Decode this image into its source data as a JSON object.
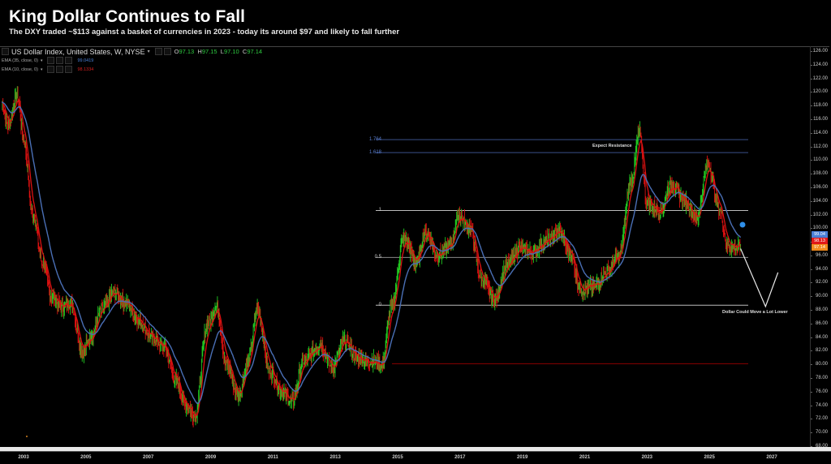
{
  "header": {
    "title": "King Dollar Continues to Fall",
    "subtitle": "The DXY traded ~$113 against a basket of currencies in 2023 - today its around $97 and likely to fall further"
  },
  "legend": {
    "symbol": "US Dollar Index, United States, W, NYSE",
    "open_label": "O",
    "open": "97.13",
    "high_label": "H",
    "high": "97.15",
    "low_label": "L",
    "low": "97.10",
    "close_label": "C",
    "close": "97.14",
    "ema1_label": "EMA (35, close, 0)",
    "ema1_value": "99.0419",
    "ema2_label": "EMA (10, close, 0)",
    "ema2_value": "98.1334"
  },
  "price_tags": {
    "ema35": "99.04",
    "ema10": "98.13",
    "last": "97.14"
  },
  "annotations": {
    "resistance": "Expect Resistance",
    "lower": "Dollar Could Move a Lot Lower"
  },
  "fib_levels": [
    {
      "label": "1.764",
      "price": 113.0,
      "color": "#3a4f8a"
    },
    {
      "label": "1.618",
      "price": 111.1,
      "color": "#3a4f8a"
    },
    {
      "label": "1",
      "price": 102.6,
      "color": "#bbbbbb"
    },
    {
      "label": "0.5",
      "price": 95.7,
      "color": "#888888"
    },
    {
      "label": "0",
      "price": 88.7,
      "color": "#bbbbbb"
    }
  ],
  "colors": {
    "background": "#000000",
    "up_candle": "#22cc22",
    "down_candle": "#dd1111",
    "ema35": "#4a6fb5",
    "ema10": "#dd1111",
    "support_line": "#8b0000",
    "marker": "#2f8fe8"
  },
  "chart_data": {
    "type": "line",
    "title": "King Dollar Continues to Fall",
    "subtitle": "The DXY traded ~$113 against a basket of currencies in 2023 - today its around $97 and likely to fall further",
    "xlabel": "",
    "ylabel": "",
    "ylim": [
      68,
      126
    ],
    "xlim": [
      2002.3,
      2028.0
    ],
    "grid": false,
    "legend_position": "top-left",
    "x_ticks": [
      "2003",
      "2005",
      "2007",
      "2009",
      "2011",
      "2013",
      "2015",
      "2017",
      "2019",
      "2021",
      "2023",
      "2025",
      "2027"
    ],
    "y_ticks": [
      "126.00",
      "124.00",
      "122.00",
      "120.00",
      "118.00",
      "116.00",
      "114.00",
      "112.00",
      "110.00",
      "108.00",
      "106.00",
      "104.00",
      "102.00",
      "100.00",
      "98.00",
      "96.00",
      "94.00",
      "92.00",
      "90.00",
      "88.00",
      "86.00",
      "84.00",
      "82.00",
      "80.00",
      "78.00",
      "76.00",
      "74.00",
      "72.00",
      "70.00",
      "68.00"
    ],
    "series": [
      {
        "name": "US Dollar Index (weekly close, approx.)",
        "x": [
          2002.3,
          2002.5,
          2002.8,
          2003.0,
          2003.3,
          2003.6,
          2003.9,
          2004.2,
          2004.5,
          2004.9,
          2005.2,
          2005.5,
          2005.9,
          2006.3,
          2006.7,
          2007.1,
          2007.5,
          2007.9,
          2008.2,
          2008.5,
          2008.9,
          2009.2,
          2009.5,
          2009.9,
          2010.2,
          2010.5,
          2010.9,
          2011.3,
          2011.6,
          2012.0,
          2012.5,
          2012.9,
          2013.3,
          2013.7,
          2014.1,
          2014.5,
          2014.8,
          2015.2,
          2015.6,
          2015.9,
          2016.3,
          2016.7,
          2016.95,
          2017.3,
          2017.7,
          2018.1,
          2018.5,
          2018.9,
          2019.3,
          2019.7,
          2020.2,
          2020.5,
          2020.9,
          2021.3,
          2021.7,
          2022.1,
          2022.5,
          2022.75,
          2023.0,
          2023.4,
          2023.8,
          2024.2,
          2024.6,
          2024.95,
          2025.3,
          2025.6,
          2026.0
        ],
        "y": [
          118.5,
          115.0,
          119.5,
          113.0,
          102.0,
          95.0,
          90.0,
          88.5,
          89.0,
          82.0,
          84.5,
          88.0,
          90.5,
          89.0,
          86.5,
          84.0,
          82.5,
          77.5,
          74.0,
          72.5,
          86.0,
          88.5,
          80.0,
          75.5,
          80.5,
          88.0,
          79.0,
          76.0,
          74.5,
          80.5,
          83.0,
          79.5,
          83.5,
          81.0,
          80.5,
          80.0,
          88.5,
          98.5,
          95.0,
          99.5,
          96.0,
          97.5,
          102.0,
          100.0,
          92.5,
          89.5,
          94.5,
          97.0,
          96.5,
          98.0,
          99.5,
          96.5,
          91.0,
          91.5,
          93.5,
          96.0,
          107.0,
          114.0,
          103.5,
          102.5,
          106.5,
          104.0,
          101.5,
          109.5,
          103.0,
          97.5,
          97.14
        ]
      },
      {
        "name": "EMA (35, close, 0)",
        "last_value": 99.0419
      },
      {
        "name": "EMA (10, close, 0)",
        "last_value": 98.1334
      }
    ],
    "horizontal_lines": [
      {
        "label": "1.764",
        "value": 113.0
      },
      {
        "label": "1.618",
        "value": 111.1
      },
      {
        "label": "1",
        "value": 102.6
      },
      {
        "label": "0.5",
        "value": 95.7
      },
      {
        "label": "0",
        "value": 88.7
      },
      {
        "label": "support",
        "value": 80.1
      }
    ],
    "annotations": [
      {
        "text": "Expect Resistance",
        "x": 2022.0,
        "y": 112.0
      },
      {
        "text": "Dollar Could Move a Lot Lower",
        "x": 2026.2,
        "y": 87.7
      },
      {
        "text": "projected path",
        "points": [
          [
            2026.0,
            97.0
          ],
          [
            2026.8,
            88.5
          ],
          [
            2027.2,
            93.5
          ]
        ]
      }
    ],
    "last_price": 97.14,
    "ohlc": {
      "open": 97.13,
      "high": 97.15,
      "low": 97.1,
      "close": 97.14
    }
  }
}
